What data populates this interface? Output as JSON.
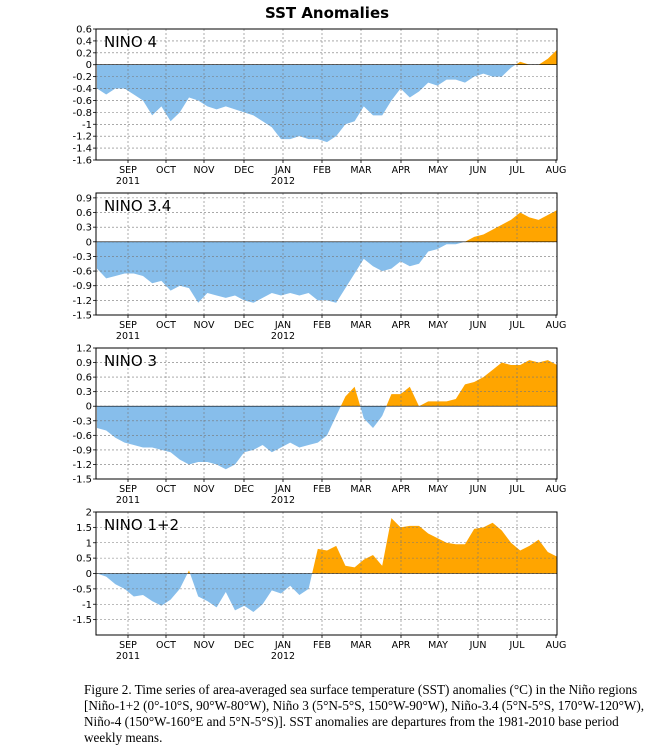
{
  "title": "SST Anomalies",
  "caption": "Figure 2. Time series of area-averaged sea surface temperature (SST) anomalies (°C) in the Niño regions [Niño-1+2 (0°-10°S, 90°W-80°W), Niño 3 (5°N-5°S, 150°W-90°W), Niño-3.4 (5°N-5°S, 170°W-120°W), Niño-4 (150°W-160°E and 5°N-5°S)].  SST anomalies are departures from the 1981-2010 base period weekly means.",
  "colors": {
    "positive": "#FFA500",
    "negative": "#87BEEB",
    "grid": "#777777",
    "axis": "#000000"
  },
  "x_axis": {
    "month_labels": [
      "SEP",
      "OCT",
      "NOV",
      "DEC",
      "JAN",
      "FEB",
      "MAR",
      "APR",
      "MAY",
      "JUN",
      "JUL",
      "AUG"
    ],
    "year_labels": [
      {
        "text": "2011",
        "under_month": 0
      },
      {
        "text": "2012",
        "under_month": 4
      }
    ]
  },
  "chart_data": [
    {
      "type": "area",
      "label": "NINO 4",
      "ylim": [
        -1.6,
        0.6
      ],
      "yticks": [
        0.6,
        0.4,
        0.2,
        0,
        -0.2,
        -0.4,
        -0.6,
        -0.8,
        -1,
        -1.2,
        -1.4,
        -1.6
      ],
      "grid": true,
      "x_weeks": [
        0,
        1,
        2,
        3,
        4,
        5,
        6,
        7,
        8,
        9,
        10,
        11,
        12,
        13,
        14,
        15,
        16,
        17,
        18,
        19,
        20,
        21,
        22,
        23,
        24,
        25,
        26,
        27,
        28,
        29,
        30,
        31,
        32,
        33,
        34,
        35,
        36,
        37,
        38,
        39,
        40,
        41,
        42,
        43,
        44,
        45,
        46,
        47,
        48,
        49,
        50
      ],
      "values": [
        -0.4,
        -0.5,
        -0.4,
        -0.4,
        -0.5,
        -0.6,
        -0.85,
        -0.7,
        -0.95,
        -0.8,
        -0.55,
        -0.6,
        -0.7,
        -0.75,
        -0.7,
        -0.75,
        -0.8,
        -0.85,
        -0.95,
        -1.05,
        -1.25,
        -1.25,
        -1.2,
        -1.25,
        -1.25,
        -1.3,
        -1.2,
        -1.0,
        -0.95,
        -0.7,
        -0.85,
        -0.85,
        -0.6,
        -0.4,
        -0.55,
        -0.45,
        -0.3,
        -0.35,
        -0.25,
        -0.25,
        -0.3,
        -0.2,
        -0.15,
        -0.2,
        -0.2,
        -0.05,
        0.05,
        0.0,
        0.0,
        0.1,
        0.25
      ]
    },
    {
      "type": "area",
      "label": "NINO 3.4",
      "ylim": [
        -1.5,
        1.0
      ],
      "yticks": [
        0.9,
        0.6,
        0.3,
        0,
        -0.3,
        -0.6,
        -0.9,
        -1.2,
        -1.5
      ],
      "grid": true,
      "x_weeks": [
        0,
        1,
        2,
        3,
        4,
        5,
        6,
        7,
        8,
        9,
        10,
        11,
        12,
        13,
        14,
        15,
        16,
        17,
        18,
        19,
        20,
        21,
        22,
        23,
        24,
        25,
        26,
        27,
        28,
        29,
        30,
        31,
        32,
        33,
        34,
        35,
        36,
        37,
        38,
        39,
        40,
        41,
        42,
        43,
        44,
        45,
        46,
        47,
        48,
        49,
        50
      ],
      "values": [
        -0.55,
        -0.75,
        -0.7,
        -0.65,
        -0.65,
        -0.7,
        -0.85,
        -0.8,
        -1.0,
        -0.9,
        -0.95,
        -1.25,
        -1.05,
        -1.1,
        -1.15,
        -1.1,
        -1.2,
        -1.25,
        -1.15,
        -1.05,
        -1.1,
        -1.05,
        -1.1,
        -1.05,
        -1.2,
        -1.2,
        -1.25,
        -0.95,
        -0.65,
        -0.35,
        -0.5,
        -0.6,
        -0.55,
        -0.4,
        -0.5,
        -0.45,
        -0.2,
        -0.15,
        -0.05,
        -0.05,
        0.0,
        0.1,
        0.15,
        0.25,
        0.35,
        0.45,
        0.6,
        0.5,
        0.45,
        0.55,
        0.65
      ]
    },
    {
      "type": "area",
      "label": "NINO 3",
      "ylim": [
        -1.5,
        1.2
      ],
      "yticks": [
        1.2,
        0.9,
        0.6,
        0.3,
        0,
        -0.3,
        -0.6,
        -0.9,
        -1.2,
        -1.5
      ],
      "grid": true,
      "x_weeks": [
        0,
        1,
        2,
        3,
        4,
        5,
        6,
        7,
        8,
        9,
        10,
        11,
        12,
        13,
        14,
        15,
        16,
        17,
        18,
        19,
        20,
        21,
        22,
        23,
        24,
        25,
        26,
        27,
        28,
        29,
        30,
        31,
        32,
        33,
        34,
        35,
        36,
        37,
        38,
        39,
        40,
        41,
        42,
        43,
        44,
        45,
        46,
        47,
        48,
        49,
        50
      ],
      "values": [
        -0.45,
        -0.5,
        -0.65,
        -0.75,
        -0.8,
        -0.85,
        -0.85,
        -0.9,
        -0.95,
        -1.1,
        -1.2,
        -1.15,
        -1.15,
        -1.2,
        -1.3,
        -1.2,
        -0.95,
        -0.9,
        -0.8,
        -0.95,
        -0.85,
        -0.75,
        -0.85,
        -0.8,
        -0.75,
        -0.6,
        -0.2,
        0.2,
        0.4,
        -0.25,
        -0.45,
        -0.2,
        0.25,
        0.25,
        0.4,
        0.0,
        0.1,
        0.1,
        0.1,
        0.15,
        0.45,
        0.5,
        0.6,
        0.75,
        0.9,
        0.85,
        0.85,
        0.95,
        0.9,
        0.95,
        0.85
      ]
    },
    {
      "type": "area",
      "label": "NINO 1+2",
      "ylim": [
        -2.0,
        2.0
      ],
      "yticks": [
        2,
        1.5,
        1,
        0.5,
        0,
        -0.5,
        -1,
        -1.5
      ],
      "grid": true,
      "x_weeks": [
        0,
        1,
        2,
        3,
        4,
        5,
        6,
        7,
        8,
        9,
        10,
        11,
        12,
        13,
        14,
        15,
        16,
        17,
        18,
        19,
        20,
        21,
        22,
        23,
        24,
        25,
        26,
        27,
        28,
        29,
        30,
        31,
        32,
        33,
        34,
        35,
        36,
        37,
        38,
        39,
        40,
        41,
        42,
        43,
        44,
        45,
        46,
        47,
        48,
        49,
        50
      ],
      "values": [
        0.0,
        -0.1,
        -0.35,
        -0.5,
        -0.75,
        -0.7,
        -0.9,
        -1.05,
        -0.85,
        -0.5,
        0.1,
        -0.75,
        -0.9,
        -1.1,
        -0.6,
        -1.2,
        -1.05,
        -1.25,
        -1.0,
        -0.55,
        -0.65,
        -0.4,
        -0.7,
        -0.5,
        0.8,
        0.75,
        0.9,
        0.25,
        0.2,
        0.45,
        0.6,
        0.25,
        1.8,
        1.5,
        1.55,
        1.55,
        1.3,
        1.15,
        1.0,
        0.95,
        0.95,
        1.45,
        1.5,
        1.65,
        1.4,
        1.0,
        0.75,
        0.9,
        1.1,
        0.7,
        0.55
      ]
    }
  ]
}
